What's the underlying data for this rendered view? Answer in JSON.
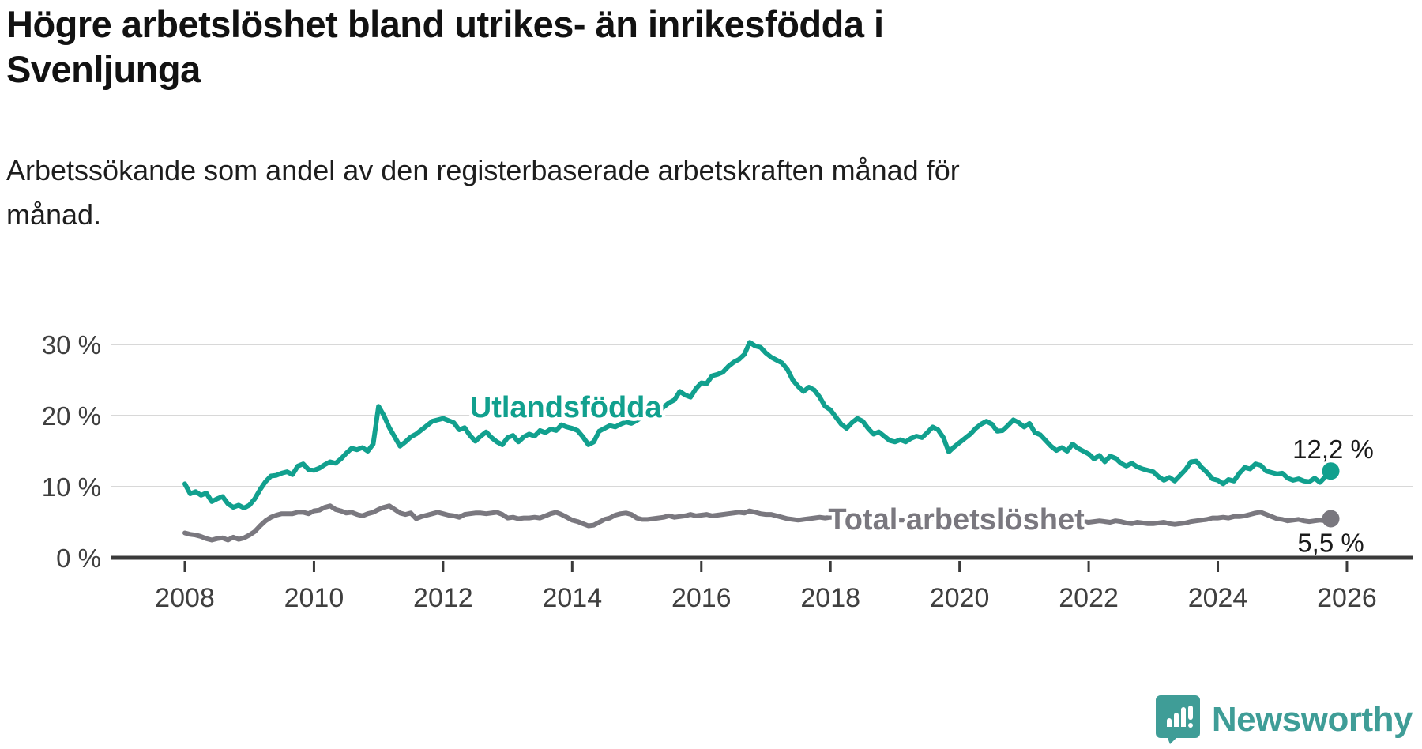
{
  "page": {
    "title": "Högre arbetslöshet bland utrikes- än inrikesfödda i\nSvenljunga",
    "subtitle": "Arbetssökande som andel av den registerbaserade arbetskraften månad för\nmånad.",
    "background_color": "#ffffff"
  },
  "branding": {
    "logo_text": "Newsworthy",
    "logo_color": "#3f9d97",
    "logo_icon": "bar-chart-speech-bubble-icon"
  },
  "chart_data": {
    "type": "line",
    "title": "Högre arbetslöshet bland utrikes- än inrikesfödda i Svenljunga",
    "subtitle": "Arbetssökande som andel av den registerbaserade arbetskraften månad för månad.",
    "grid": true,
    "x_axis": {
      "ticks": [
        2008,
        2010,
        2012,
        2014,
        2016,
        2018,
        2020,
        2022,
        2024,
        2026
      ],
      "tick_labels": [
        "2008",
        "2010",
        "2012",
        "2014",
        "2016",
        "2018",
        "2020",
        "2022",
        "2024",
        "2026"
      ],
      "range": [
        2006.85,
        2027.0
      ]
    },
    "y_axis": {
      "ticks": [
        0,
        10,
        20,
        30
      ],
      "tick_labels": [
        "0 %",
        "10 %",
        "20 %",
        "30 %"
      ],
      "range": [
        0,
        33.3
      ]
    },
    "axis_color": "#3a3a3a",
    "gridline_color": "#d8d8d8",
    "tick_label_color": "#3f3f3f",
    "value_label_color": "#1a1a1a",
    "series": [
      {
        "name": "Utlandsfödda",
        "color": "#11a08e",
        "end_label": "12,2 %",
        "end_value": 12.2,
        "label_pos": [
          2013.9,
          19.8
        ],
        "end_label_offset": [
          3,
          -16
        ],
        "x_start": 2008.0,
        "x_step_months": 1,
        "values": [
          10.4,
          9.0,
          9.3,
          8.8,
          9.1,
          7.9,
          8.3,
          8.6,
          7.6,
          7.1,
          7.4,
          7.0,
          7.4,
          8.3,
          9.6,
          10.7,
          11.5,
          11.6,
          11.9,
          12.1,
          11.7,
          12.9,
          13.2,
          12.4,
          12.3,
          12.6,
          13.1,
          13.5,
          13.3,
          13.9,
          14.7,
          15.4,
          15.2,
          15.5,
          15.0,
          16.0,
          21.3,
          20.0,
          18.3,
          17.0,
          15.7,
          16.3,
          17.0,
          17.4,
          18.0,
          18.6,
          19.2,
          19.4,
          19.6,
          19.3,
          19.0,
          18.0,
          18.3,
          17.2,
          16.4,
          17.1,
          17.7,
          16.9,
          16.3,
          15.9,
          16.9,
          17.2,
          16.3,
          17.0,
          17.4,
          17.1,
          17.9,
          17.6,
          18.1,
          17.9,
          18.7,
          18.4,
          18.2,
          17.9,
          17.0,
          15.9,
          16.3,
          17.8,
          18.2,
          18.6,
          18.4,
          18.8,
          19.1,
          18.9,
          19.3,
          19.8,
          20.2,
          20.0,
          20.6,
          21.2,
          21.8,
          22.2,
          23.4,
          22.9,
          22.6,
          23.8,
          24.6,
          24.5,
          25.6,
          25.8,
          26.1,
          26.9,
          27.5,
          27.9,
          28.6,
          30.3,
          29.8,
          29.6,
          28.8,
          28.2,
          27.8,
          27.4,
          26.5,
          25.0,
          24.1,
          23.4,
          24.0,
          23.6,
          22.6,
          21.3,
          20.8,
          19.8,
          18.8,
          18.2,
          19.0,
          19.6,
          19.2,
          18.2,
          17.4,
          17.7,
          17.1,
          16.5,
          16.3,
          16.6,
          16.3,
          16.8,
          17.1,
          16.9,
          17.6,
          18.4,
          18.0,
          16.9,
          14.9,
          15.6,
          16.2,
          16.8,
          17.4,
          18.2,
          18.8,
          19.2,
          18.8,
          17.8,
          17.9,
          18.6,
          19.4,
          19.0,
          18.4,
          18.9,
          17.6,
          17.3,
          16.5,
          15.7,
          15.1,
          15.5,
          15.0,
          16.0,
          15.4,
          15.0,
          14.6,
          13.9,
          14.4,
          13.5,
          14.3,
          14.0,
          13.3,
          12.9,
          13.3,
          12.8,
          12.5,
          12.3,
          12.1,
          11.4,
          10.9,
          11.3,
          10.8,
          11.6,
          12.4,
          13.5,
          13.6,
          12.7,
          12.0,
          11.1,
          10.9,
          10.4,
          11.0,
          10.8,
          11.9,
          12.7,
          12.5,
          13.2,
          13.0,
          12.2,
          12.0,
          11.8,
          11.9,
          11.2,
          10.9,
          11.1,
          10.8,
          10.7,
          11.2,
          10.6,
          11.4,
          12.2
        ]
      },
      {
        "name": "Total arbetslöshet",
        "color": "#7a787f",
        "end_label": "5,5 %",
        "end_value": 5.5,
        "label_pos": [
          2019.95,
          4.0
        ],
        "end_label_offset": [
          0,
          42
        ],
        "x_start": 2008.0,
        "x_step_months": 1,
        "values": [
          3.5,
          3.3,
          3.2,
          3.0,
          2.7,
          2.5,
          2.7,
          2.8,
          2.5,
          2.9,
          2.6,
          2.8,
          3.2,
          3.7,
          4.5,
          5.2,
          5.7,
          6.0,
          6.2,
          6.2,
          6.2,
          6.4,
          6.4,
          6.2,
          6.6,
          6.7,
          7.1,
          7.3,
          6.8,
          6.6,
          6.3,
          6.4,
          6.1,
          5.9,
          6.2,
          6.4,
          6.8,
          7.1,
          7.3,
          6.8,
          6.3,
          6.1,
          6.3,
          5.5,
          5.8,
          6.0,
          6.2,
          6.4,
          6.2,
          6.0,
          5.9,
          5.7,
          6.1,
          6.2,
          6.3,
          6.3,
          6.2,
          6.3,
          6.4,
          6.1,
          5.6,
          5.7,
          5.5,
          5.6,
          5.6,
          5.7,
          5.6,
          5.9,
          6.2,
          6.4,
          6.1,
          5.7,
          5.3,
          5.1,
          4.8,
          4.5,
          4.6,
          5.0,
          5.4,
          5.6,
          6.0,
          6.2,
          6.3,
          6.1,
          5.6,
          5.4,
          5.4,
          5.5,
          5.6,
          5.7,
          5.9,
          5.7,
          5.8,
          5.9,
          6.1,
          5.9,
          6.0,
          6.1,
          5.9,
          6.0,
          6.1,
          6.2,
          6.3,
          6.4,
          6.3,
          6.6,
          6.4,
          6.2,
          6.1,
          6.1,
          5.9,
          5.7,
          5.5,
          5.4,
          5.3,
          5.4,
          5.5,
          5.6,
          5.7,
          5.6,
          5.7,
          5.7,
          5.8,
          5.8,
          5.9,
          5.8,
          5.7,
          5.6,
          5.6,
          5.5,
          5.5,
          5.4,
          5.4,
          5.3,
          5.3,
          5.4,
          5.4,
          5.5,
          5.5,
          5.6,
          5.5,
          5.4,
          5.5,
          5.6,
          5.6,
          5.8,
          5.9,
          6.1,
          6.2,
          6.2,
          6.1,
          6.0,
          5.9,
          5.9,
          5.8,
          5.8,
          5.8,
          5.7,
          5.7,
          5.6,
          5.5,
          5.4,
          5.4,
          5.3,
          5.3,
          5.2,
          5.1,
          5.1,
          5.0,
          5.1,
          5.2,
          5.1,
          5.0,
          5.2,
          5.1,
          4.9,
          4.8,
          5.0,
          4.9,
          4.8,
          4.8,
          4.9,
          5.0,
          4.8,
          4.7,
          4.8,
          4.9,
          5.1,
          5.2,
          5.3,
          5.4,
          5.6,
          5.6,
          5.7,
          5.6,
          5.8,
          5.8,
          5.9,
          6.1,
          6.3,
          6.4,
          6.1,
          5.8,
          5.5,
          5.4,
          5.2,
          5.3,
          5.4,
          5.2,
          5.1,
          5.2,
          5.3,
          5.2,
          5.5
        ]
      }
    ]
  }
}
